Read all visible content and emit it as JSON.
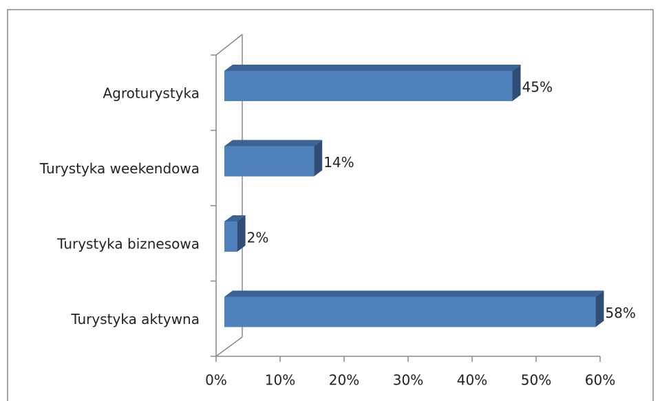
{
  "chart_data": {
    "type": "bar3d_horizontal",
    "categories": [
      "Agroturystyka",
      "Turystyka weekendowa",
      "Turystyka biznesowa",
      "Turystyka aktywna"
    ],
    "values": [
      45,
      14,
      2,
      58
    ],
    "value_labels": [
      "45%",
      "14%",
      "2%",
      "58%"
    ],
    "color": "#4f81bd",
    "xlim": [
      0,
      60
    ],
    "xticks": [
      {
        "value": 0,
        "label": "0%"
      },
      {
        "value": 10,
        "label": "10%"
      },
      {
        "value": 20,
        "label": "20%"
      },
      {
        "value": 30,
        "label": "30%"
      },
      {
        "value": 40,
        "label": "40%"
      },
      {
        "value": 50,
        "label": "50%"
      },
      {
        "value": 60,
        "label": "60%"
      }
    ],
    "grid": false
  }
}
